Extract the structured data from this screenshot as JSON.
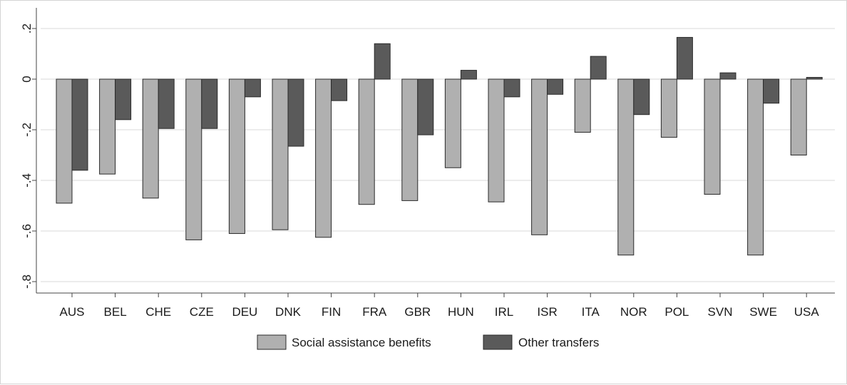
{
  "chart_data": {
    "type": "bar",
    "categories": [
      "AUS",
      "BEL",
      "CHE",
      "CZE",
      "DEU",
      "DNK",
      "FIN",
      "FRA",
      "GBR",
      "HUN",
      "IRL",
      "ISR",
      "ITA",
      "NOR",
      "POL",
      "SVN",
      "SWE",
      "USA"
    ],
    "series": [
      {
        "name": "Social assistance benefits",
        "color": "#b0b0b0",
        "values": [
          -0.49,
          -0.375,
          -0.47,
          -0.635,
          -0.61,
          -0.595,
          -0.625,
          -0.495,
          -0.48,
          -0.35,
          -0.485,
          -0.615,
          -0.21,
          -0.695,
          -0.23,
          -0.455,
          -0.695,
          -0.3
        ]
      },
      {
        "name": "Other transfers",
        "color": "#5a5a5a",
        "values": [
          -0.36,
          -0.16,
          -0.195,
          -0.195,
          -0.07,
          -0.265,
          -0.085,
          0.14,
          -0.22,
          0.035,
          -0.07,
          -0.06,
          0.09,
          -0.14,
          0.165,
          0.025,
          -0.095,
          0.007
        ]
      }
    ],
    "y_ticks": [
      0.2,
      0,
      -0.2,
      -0.4,
      -0.6,
      -0.8
    ],
    "y_tick_labels": [
      ".2",
      "0",
      "-.2",
      "-.4",
      "-.6",
      "-.8"
    ],
    "ylim": [
      -0.855,
      0.255
    ],
    "grid": true,
    "legend": "bottom"
  }
}
